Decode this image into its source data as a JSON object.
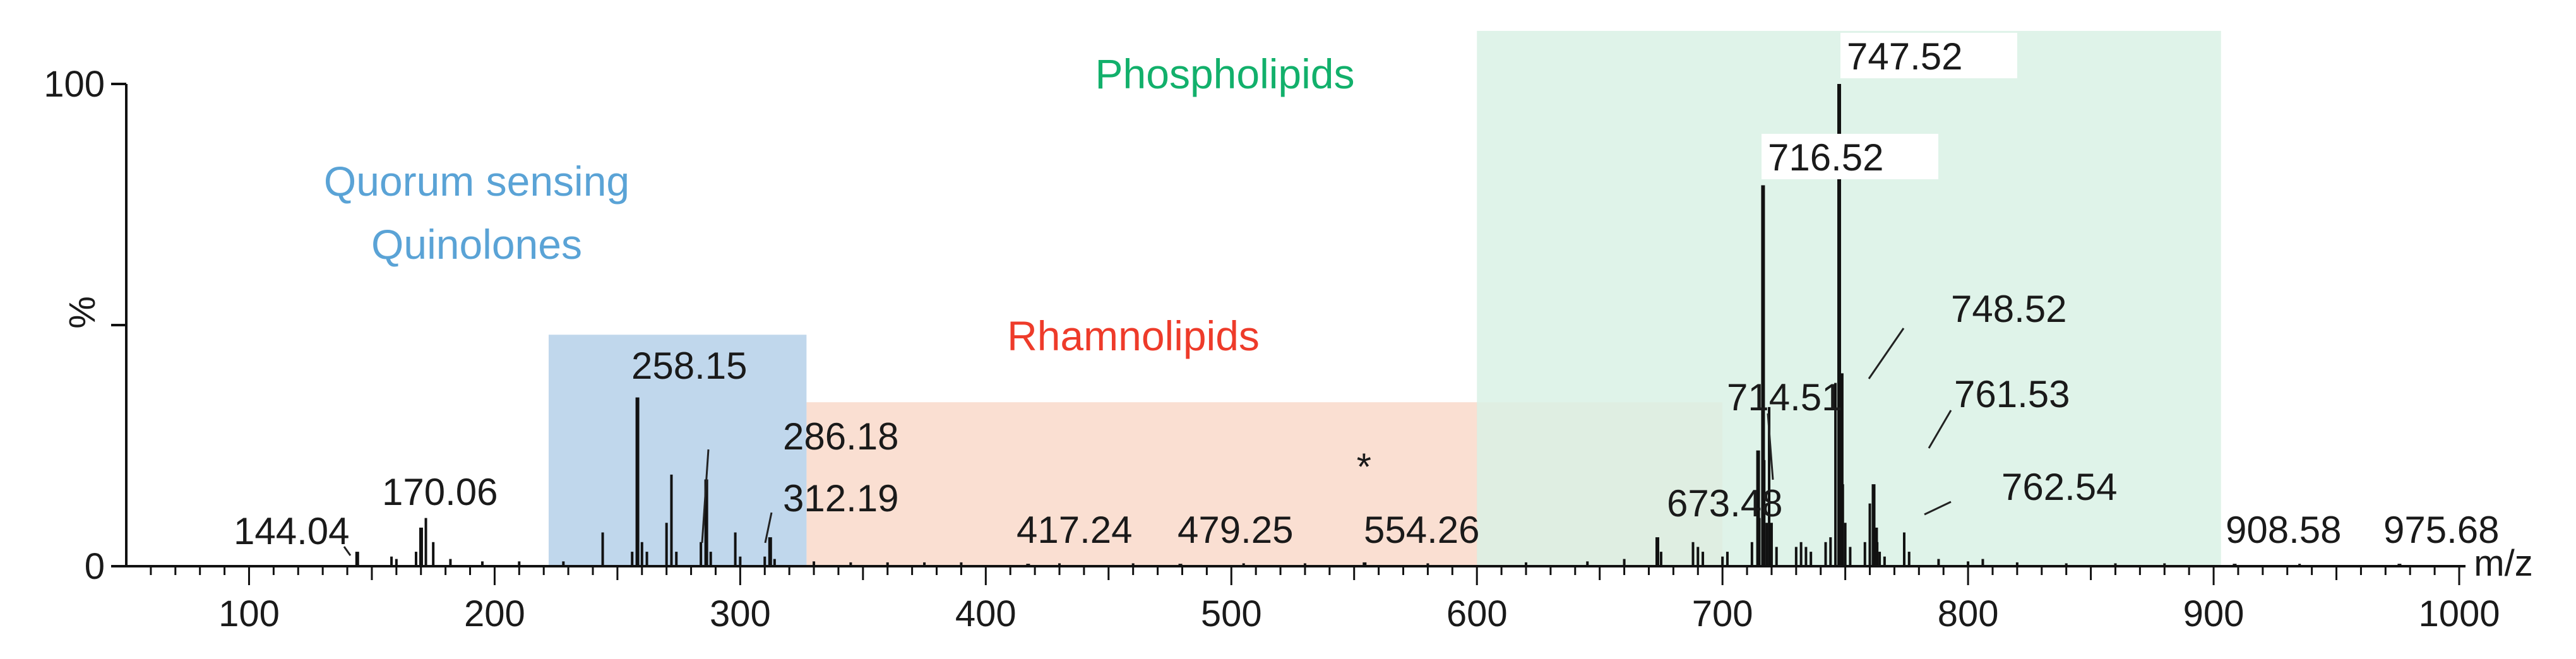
{
  "chart_data": {
    "type": "bar",
    "title": "",
    "xlabel": "m/z",
    "ylabel": "%",
    "xlim": [
      50,
      1000
    ],
    "ylim": [
      0,
      100
    ],
    "x_ticks": [
      100,
      200,
      300,
      400,
      500,
      600,
      700,
      800,
      900,
      1000
    ],
    "y_ticks": [
      0,
      100
    ],
    "grid": false,
    "regions": [
      {
        "label": "Quorum sensing Quinolones",
        "lines": [
          "Quorum sensing",
          "Quinolones"
        ],
        "x_range": [
          222,
          327
        ],
        "y_top": 48,
        "color": "#b9d3ea",
        "label_color": "#5aa3d6"
      },
      {
        "label": "Rhamnolipids",
        "lines": [
          "Rhamnolipids"
        ],
        "x_range": [
          327,
          700
        ],
        "y_top": 34,
        "color": "#f9dccd",
        "label_color": "#ee3b2a"
      },
      {
        "label": "Phospholipids",
        "lines": [
          "Phospholipids"
        ],
        "x_range": [
          600,
          903
        ],
        "y_top": 111,
        "color": "#d9f1e5",
        "label_color": "#12b06b"
      }
    ],
    "annotations": [
      {
        "text": "*",
        "x": 554,
        "y": 20
      }
    ],
    "peaks": [
      {
        "x": 144.04,
        "y": 3,
        "label": "144.04"
      },
      {
        "x": 170.06,
        "y": 8,
        "label": "170.06"
      },
      {
        "x": 258.15,
        "y": 35,
        "label": "258.15"
      },
      {
        "x": 286.18,
        "y": 18,
        "label": "286.18"
      },
      {
        "x": 312.19,
        "y": 6,
        "label": "312.19"
      },
      {
        "x": 417.24,
        "y": 0.5,
        "label": "417.24"
      },
      {
        "x": 479.25,
        "y": 0.5,
        "label": "479.25"
      },
      {
        "x": 554.26,
        "y": 0.8,
        "label": "554.26"
      },
      {
        "x": 673.48,
        "y": 6,
        "label": "673.48"
      },
      {
        "x": 714.51,
        "y": 24,
        "label": "714.51"
      },
      {
        "x": 716.52,
        "y": 79,
        "label": "716.52"
      },
      {
        "x": 747.52,
        "y": 100,
        "label": "747.52"
      },
      {
        "x": 748.52,
        "y": 40,
        "label": "748.52"
      },
      {
        "x": 761.53,
        "y": 17,
        "label": "761.53"
      },
      {
        "x": 762.54,
        "y": 8,
        "label": "762.54"
      },
      {
        "x": 908.58,
        "y": 0.5,
        "label": "908.58"
      },
      {
        "x": 975.68,
        "y": 0.5,
        "label": "975.68"
      }
    ],
    "minor_peaks": [
      {
        "x": 158,
        "y": 2
      },
      {
        "x": 160,
        "y": 1.5
      },
      {
        "x": 168,
        "y": 3
      },
      {
        "x": 172,
        "y": 10
      },
      {
        "x": 175,
        "y": 5
      },
      {
        "x": 182,
        "y": 1.5
      },
      {
        "x": 195,
        "y": 1
      },
      {
        "x": 210,
        "y": 1
      },
      {
        "x": 228,
        "y": 1
      },
      {
        "x": 244,
        "y": 7
      },
      {
        "x": 256,
        "y": 3
      },
      {
        "x": 260,
        "y": 5
      },
      {
        "x": 262,
        "y": 3
      },
      {
        "x": 270,
        "y": 9
      },
      {
        "x": 272,
        "y": 19
      },
      {
        "x": 274,
        "y": 3
      },
      {
        "x": 284,
        "y": 5
      },
      {
        "x": 288,
        "y": 3
      },
      {
        "x": 298,
        "y": 7
      },
      {
        "x": 300,
        "y": 2
      },
      {
        "x": 310,
        "y": 2
      },
      {
        "x": 314,
        "y": 1.5
      },
      {
        "x": 330,
        "y": 1
      },
      {
        "x": 345,
        "y": 0.8
      },
      {
        "x": 360,
        "y": 0.8
      },
      {
        "x": 375,
        "y": 0.8
      },
      {
        "x": 390,
        "y": 0.8
      },
      {
        "x": 430,
        "y": 0.6
      },
      {
        "x": 460,
        "y": 0.6
      },
      {
        "x": 505,
        "y": 0.6
      },
      {
        "x": 530,
        "y": 0.6
      },
      {
        "x": 580,
        "y": 0.6
      },
      {
        "x": 620,
        "y": 0.8
      },
      {
        "x": 645,
        "y": 1
      },
      {
        "x": 660,
        "y": 1.5
      },
      {
        "x": 675,
        "y": 3
      },
      {
        "x": 688,
        "y": 5
      },
      {
        "x": 690,
        "y": 4
      },
      {
        "x": 692,
        "y": 3
      },
      {
        "x": 700,
        "y": 2
      },
      {
        "x": 702,
        "y": 3
      },
      {
        "x": 712,
        "y": 5
      },
      {
        "x": 715,
        "y": 10
      },
      {
        "x": 717,
        "y": 22
      },
      {
        "x": 718,
        "y": 9
      },
      {
        "x": 719,
        "y": 33
      },
      {
        "x": 720,
        "y": 9
      },
      {
        "x": 722,
        "y": 4
      },
      {
        "x": 730,
        "y": 4
      },
      {
        "x": 732,
        "y": 5
      },
      {
        "x": 734,
        "y": 4
      },
      {
        "x": 736,
        "y": 3
      },
      {
        "x": 742,
        "y": 5
      },
      {
        "x": 744,
        "y": 6
      },
      {
        "x": 746,
        "y": 38
      },
      {
        "x": 749,
        "y": 17
      },
      {
        "x": 750,
        "y": 9
      },
      {
        "x": 752,
        "y": 4
      },
      {
        "x": 758,
        "y": 5
      },
      {
        "x": 760,
        "y": 13
      },
      {
        "x": 763,
        "y": 5
      },
      {
        "x": 764,
        "y": 3
      },
      {
        "x": 766,
        "y": 2
      },
      {
        "x": 774,
        "y": 7
      },
      {
        "x": 776,
        "y": 3
      },
      {
        "x": 788,
        "y": 1.5
      },
      {
        "x": 800,
        "y": 1
      },
      {
        "x": 806,
        "y": 1.5
      },
      {
        "x": 820,
        "y": 0.8
      },
      {
        "x": 840,
        "y": 0.6
      },
      {
        "x": 860,
        "y": 0.6
      },
      {
        "x": 880,
        "y": 0.6
      },
      {
        "x": 935,
        "y": 0.5
      }
    ]
  }
}
